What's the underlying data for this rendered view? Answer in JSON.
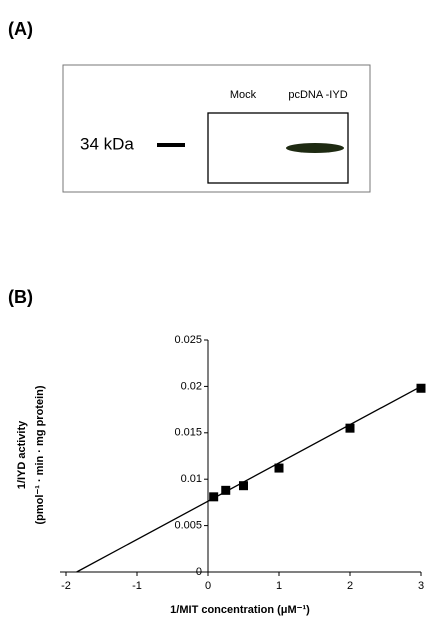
{
  "panel_a": {
    "label": "(A)",
    "lanes": [
      "Mock",
      "pcDNA -IYD"
    ],
    "marker": "34 kDa"
  },
  "panel_b": {
    "label": "(B)"
  },
  "chart_data": {
    "type": "scatter",
    "x_label": "1/MIT concentration  (μM⁻¹)",
    "y_label": [
      "1/IYD activity",
      "(pmol⁻¹ · min · mg protein)"
    ],
    "series": [
      {
        "color": "#000000",
        "marker": "square",
        "x": [
          0.08,
          0.25,
          0.5,
          1,
          2,
          3
        ],
        "values": [
          0.0081,
          0.0088,
          0.0093,
          0.0112,
          0.0155,
          0.0198
        ]
      },
      {
        "color": "#000000",
        "marker": "line",
        "x": [
          -1.85,
          3
        ],
        "values": [
          0,
          0.02
        ]
      }
    ],
    "xlim": [
      -2,
      3
    ],
    "xticks": [
      -2,
      -1,
      0,
      1,
      2,
      3
    ],
    "ylim": [
      0,
      0.025
    ],
    "yticks": [
      0,
      0.005,
      0.01,
      0.015,
      0.02,
      0.025
    ],
    "grid": false
  }
}
